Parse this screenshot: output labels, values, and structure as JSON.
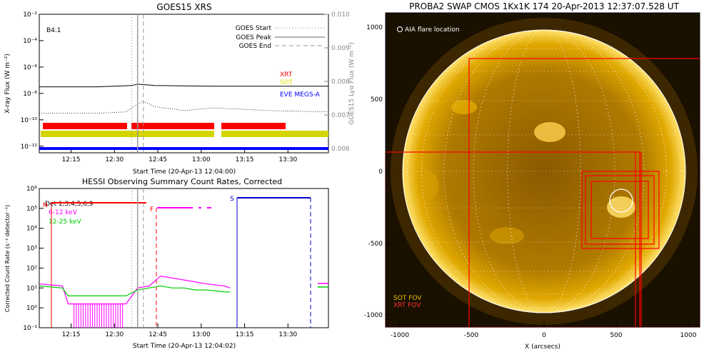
{
  "chart_data": [
    {
      "type": "line",
      "title": "GOES15 XRS",
      "xlabel": "Start Time (20-Apr-13 12:04:00)",
      "ylabel": "X-ray Flux (W m⁻²)",
      "y2label": "GOES15 Lyα Flux (W m⁻²)",
      "x_ticks": [
        "12:15",
        "12:30",
        "12:45",
        "13:00",
        "13:15",
        "13:30"
      ],
      "x_tick_minutes": [
        11,
        26,
        41,
        56,
        71,
        86
      ],
      "xlim_minutes": [
        0,
        100
      ],
      "y_log_ticks": [
        "10⁻²",
        "10⁻⁴",
        "10⁻⁶",
        "10⁻⁸",
        "10⁻¹⁰",
        "10⁻¹²"
      ],
      "ylim_log": [
        -12.5,
        -2
      ],
      "y2_ticks": [
        "0.010",
        "0.009",
        "0.008",
        "0.007",
        "0.006"
      ],
      "goes_class": "B4.1",
      "legend": [
        "GOES Start",
        "GOES Peak",
        "GOES End"
      ],
      "instrument_labels": [
        {
          "name": "XRT",
          "color": "#ff0000"
        },
        {
          "name": "SOT",
          "color": "#e0e000"
        },
        {
          "name": "EVE MEGS-A",
          "color": "#0000ff"
        }
      ],
      "event_lines_minutes": {
        "start": 32,
        "peak": 34,
        "end": 36
      },
      "series": [
        {
          "name": "long channel",
          "x": [
            0,
            20,
            32,
            34,
            40,
            60,
            80,
            100
          ],
          "y_log": [
            -7.5,
            -7.5,
            -7.4,
            -7.3,
            -7.4,
            -7.45,
            -7.45,
            -7.45
          ]
        },
        {
          "name": "short channel",
          "x": [
            0,
            20,
            30,
            34,
            36,
            40,
            50,
            60,
            70,
            80,
            100
          ],
          "y_log": [
            -9.5,
            -9.5,
            -9.4,
            -8.8,
            -8.6,
            -9.0,
            -9.3,
            -9.1,
            -9.2,
            -9.3,
            -9.4
          ]
        }
      ]
    },
    {
      "type": "line",
      "title": "HESSI Observing Summary Count Rates, Corrected",
      "xlabel": "Start Time (20-Apr-13 12:04:02)",
      "ylabel": "Corrected Count Rate (s⁻¹ detector⁻¹)",
      "x_ticks": [
        "12:15",
        "12:30",
        "12:45",
        "13:00",
        "13:15",
        "13:30"
      ],
      "x_tick_minutes": [
        11,
        26,
        41,
        56,
        71,
        86
      ],
      "xlim_minutes": [
        0,
        100
      ],
      "y_log_ticks": [
        "10⁶",
        "10⁵",
        "10⁴",
        "10³",
        "10²",
        "10¹",
        "10⁰",
        "10⁻¹"
      ],
      "ylim_log": [
        -1,
        6
      ],
      "detectors_label": "Det 1,3,4,5,6,9",
      "markers": [
        "N",
        "F",
        "S"
      ],
      "series": [
        {
          "name": "6-12 keV",
          "color": "#ff00ff",
          "x": [
            0,
            8,
            10,
            30,
            34,
            38,
            42,
            46,
            50,
            54,
            58,
            64,
            66
          ],
          "y_log": [
            1.2,
            1.1,
            0.2,
            0.2,
            1.0,
            1.1,
            1.6,
            1.5,
            1.4,
            1.3,
            1.2,
            1.1,
            1.0
          ]
        },
        {
          "name": "12-25 keV",
          "color": "#00cc00",
          "x": [
            0,
            8,
            10,
            30,
            34,
            38,
            42,
            46,
            50,
            54,
            58,
            64,
            66
          ],
          "y_log": [
            1.1,
            1.0,
            0.6,
            0.6,
            0.9,
            1.0,
            1.1,
            1.0,
            1.0,
            0.9,
            0.9,
            0.8,
            0.8
          ]
        }
      ]
    }
  ],
  "image_panel": {
    "title": "PROBA2 SWAP CMOS 1Kx1K 174 20-Apr-2013 12:37:07.528 UT",
    "legend_aia": "AIA flare location",
    "sot_fov": "SOT FOV",
    "xrt_fov": "XRT FOV",
    "xlabel": "X (arcsecs)",
    "x_ticks": [
      "-1000",
      "-500",
      "0",
      "500",
      "1000"
    ],
    "y_ticks": [
      "1000",
      "500",
      "0",
      "-500",
      "-1000"
    ],
    "colors": {
      "sot": "#e8c000",
      "xrt": "#ff0000"
    }
  }
}
